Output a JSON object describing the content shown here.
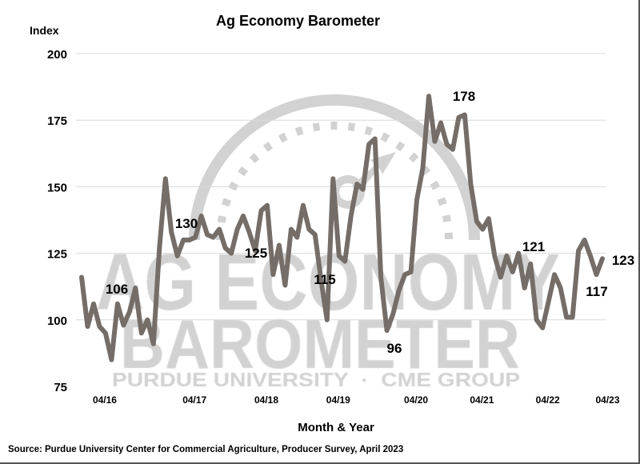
{
  "chart_data": {
    "type": "line",
    "title": "Ag Economy Barometer",
    "ylabel": "Index",
    "xlabel": "Month & Year",
    "ylim": [
      75,
      200
    ],
    "yticks": [
      75,
      100,
      125,
      150,
      175,
      200
    ],
    "grid": true,
    "line_color": "#746d68",
    "x_ticks": [
      {
        "label": "04/16",
        "index": 2
      },
      {
        "label": "04/17",
        "index": 17
      },
      {
        "label": "04/18",
        "index": 29
      },
      {
        "label": "04/19",
        "index": 41
      },
      {
        "label": "04/20",
        "index": 54
      },
      {
        "label": "04/21",
        "index": 65
      },
      {
        "label": "04/22",
        "index": 76
      },
      {
        "label": "04/23",
        "index": 86
      }
    ],
    "values": [
      116,
      97.5,
      106,
      97.5,
      95,
      85,
      106,
      98,
      103,
      112,
      95,
      100,
      91,
      127,
      153,
      133,
      124,
      130,
      130,
      131,
      139,
      132,
      131,
      134,
      127,
      125,
      134,
      139,
      133,
      126,
      141,
      143,
      117,
      128,
      113,
      134,
      131,
      143,
      134,
      132,
      115,
      100,
      153,
      124,
      122,
      139,
      151,
      149,
      166,
      168,
      116,
      96,
      102,
      111,
      117,
      118,
      145,
      157,
      184,
      167,
      174,
      166,
      164,
      176,
      177,
      151,
      137,
      134,
      138,
      124,
      116,
      124,
      118,
      125,
      112,
      121,
      100,
      97,
      107,
      117,
      112,
      101,
      101,
      126,
      130,
      124,
      117,
      123
    ],
    "annotations": [
      "106",
      "130",
      "125",
      "115",
      "96",
      "178",
      "121",
      "117",
      "123"
    ]
  },
  "watermark": {
    "line1": "AG ECONOMY",
    "line2": "BAROMETER",
    "line3": "PURDUE UNIVERSITY  ·  CME GROUP"
  },
  "source": "Source: Purdue University Center for Commercial Agriculture, Producer Survey, April 2023"
}
